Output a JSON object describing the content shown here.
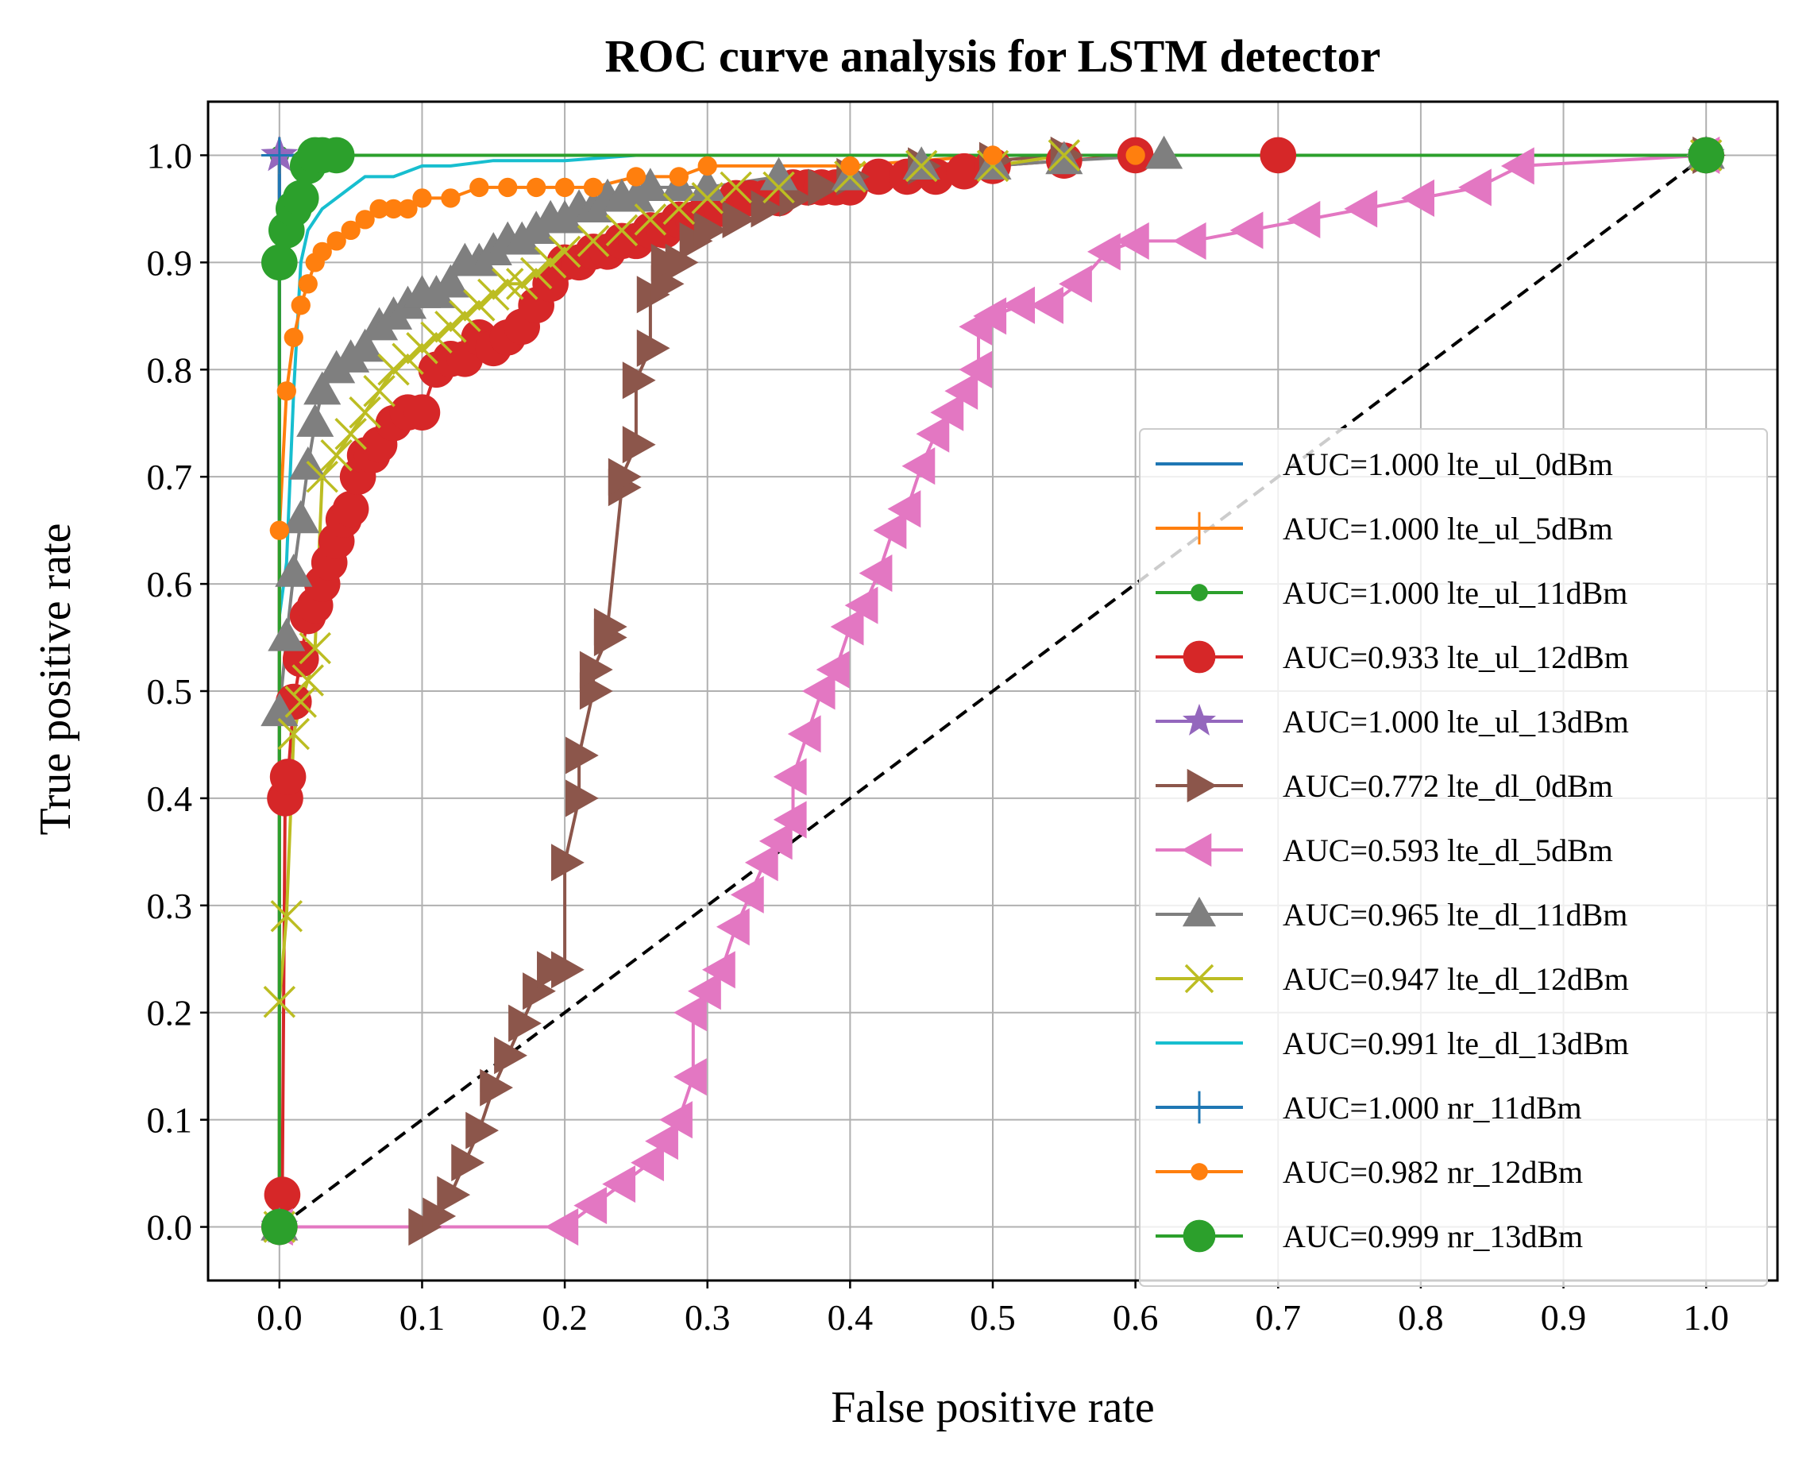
{
  "chart_data": {
    "type": "line",
    "title": "ROC curve analysis for LSTM detector",
    "xlabel": "False positive rate",
    "ylabel": "True positive rate",
    "xlim": [
      -0.05,
      1.05
    ],
    "ylim": [
      -0.05,
      1.05
    ],
    "xticks": [
      0.0,
      0.1,
      0.2,
      0.3,
      0.4,
      0.5,
      0.6,
      0.7,
      0.8,
      0.9,
      1.0
    ],
    "yticks": [
      0.0,
      0.1,
      0.2,
      0.3,
      0.4,
      0.5,
      0.6,
      0.7,
      0.8,
      0.9,
      1.0
    ],
    "xtick_labels": [
      "0.0",
      "0.1",
      "0.2",
      "0.3",
      "0.4",
      "0.5",
      "0.6",
      "0.7",
      "0.8",
      "0.9",
      "1.0"
    ],
    "ytick_labels": [
      "0.0",
      "0.1",
      "0.2",
      "0.3",
      "0.4",
      "0.5",
      "0.6",
      "0.7",
      "0.8",
      "0.9",
      "1.0"
    ],
    "grid": true,
    "legend_position": "center-right",
    "reference_line": {
      "x": [
        0,
        1
      ],
      "y": [
        0,
        1
      ],
      "color": "#000000",
      "style": "dashed"
    },
    "series": [
      {
        "name": "AUC=1.000 lte_ul_0dBm",
        "color": "#1f77b4",
        "marker": "none",
        "x": [
          0,
          0,
          1
        ],
        "y": [
          0,
          1,
          1
        ]
      },
      {
        "name": "AUC=1.000 lte_ul_5dBm",
        "color": "#ff7f0e",
        "marker": "plus",
        "x": [
          0,
          0,
          1
        ],
        "y": [
          0,
          1,
          1
        ]
      },
      {
        "name": "AUC=1.000 lte_ul_11dBm",
        "color": "#2ca02c",
        "marker": "point",
        "x": [
          0,
          0,
          1
        ],
        "y": [
          0,
          1,
          1
        ]
      },
      {
        "name": "AUC=0.933 lte_ul_12dBm",
        "color": "#d62728",
        "marker": "circle",
        "x": [
          0,
          0.002,
          0.004,
          0.006,
          0.01,
          0.015,
          0.02,
          0.025,
          0.03,
          0.035,
          0.04,
          0.045,
          0.05,
          0.055,
          0.06,
          0.065,
          0.07,
          0.08,
          0.09,
          0.1,
          0.11,
          0.12,
          0.13,
          0.14,
          0.15,
          0.16,
          0.17,
          0.18,
          0.19,
          0.2,
          0.21,
          0.22,
          0.23,
          0.24,
          0.25,
          0.26,
          0.27,
          0.28,
          0.29,
          0.3,
          0.31,
          0.32,
          0.33,
          0.34,
          0.35,
          0.36,
          0.37,
          0.38,
          0.39,
          0.4,
          0.42,
          0.44,
          0.46,
          0.48,
          0.5,
          0.55,
          0.6,
          0.7,
          1.0
        ],
        "y": [
          0,
          0.03,
          0.4,
          0.42,
          0.49,
          0.53,
          0.57,
          0.58,
          0.6,
          0.62,
          0.64,
          0.66,
          0.67,
          0.7,
          0.72,
          0.72,
          0.73,
          0.75,
          0.76,
          0.76,
          0.8,
          0.81,
          0.81,
          0.83,
          0.82,
          0.83,
          0.84,
          0.86,
          0.88,
          0.9,
          0.9,
          0.91,
          0.91,
          0.92,
          0.92,
          0.93,
          0.93,
          0.94,
          0.94,
          0.95,
          0.95,
          0.96,
          0.96,
          0.96,
          0.96,
          0.97,
          0.97,
          0.97,
          0.97,
          0.97,
          0.98,
          0.98,
          0.98,
          0.985,
          0.99,
          0.995,
          1.0,
          1.0,
          1.0
        ]
      },
      {
        "name": "AUC=1.000 lte_ul_13dBm",
        "color": "#9467bd",
        "marker": "star",
        "x": [
          0,
          0,
          1
        ],
        "y": [
          0,
          1,
          1
        ]
      },
      {
        "name": "AUC=0.772 lte_dl_0dBm",
        "color": "#8c564b",
        "marker": "triangle-right",
        "x": [
          0.1,
          0.11,
          0.12,
          0.13,
          0.14,
          0.15,
          0.16,
          0.17,
          0.18,
          0.19,
          0.2,
          0.2,
          0.21,
          0.21,
          0.22,
          0.22,
          0.23,
          0.23,
          0.24,
          0.24,
          0.25,
          0.25,
          0.26,
          0.26,
          0.27,
          0.27,
          0.28,
          0.29,
          0.3,
          0.32,
          0.34,
          0.36,
          0.38,
          0.4,
          0.45,
          0.5,
          0.55,
          1.0
        ],
        "y": [
          0,
          0.01,
          0.03,
          0.06,
          0.09,
          0.13,
          0.16,
          0.19,
          0.22,
          0.24,
          0.24,
          0.34,
          0.4,
          0.44,
          0.5,
          0.52,
          0.55,
          0.56,
          0.69,
          0.7,
          0.73,
          0.79,
          0.82,
          0.87,
          0.88,
          0.9,
          0.9,
          0.92,
          0.93,
          0.94,
          0.95,
          0.96,
          0.97,
          0.98,
          0.99,
          0.995,
          1.0,
          1.0
        ]
      },
      {
        "name": "AUC=0.593 lte_dl_5dBm",
        "color": "#e377c2",
        "marker": "triangle-left",
        "x": [
          0,
          0.2,
          0.22,
          0.24,
          0.26,
          0.27,
          0.28,
          0.29,
          0.29,
          0.3,
          0.31,
          0.32,
          0.33,
          0.34,
          0.35,
          0.36,
          0.36,
          0.37,
          0.38,
          0.39,
          0.4,
          0.41,
          0.42,
          0.43,
          0.44,
          0.45,
          0.46,
          0.47,
          0.48,
          0.49,
          0.49,
          0.5,
          0.52,
          0.54,
          0.56,
          0.58,
          0.6,
          0.64,
          0.68,
          0.72,
          0.76,
          0.8,
          0.84,
          0.87,
          1.0
        ],
        "y": [
          0,
          0,
          0.02,
          0.04,
          0.06,
          0.08,
          0.1,
          0.14,
          0.2,
          0.22,
          0.24,
          0.28,
          0.31,
          0.34,
          0.36,
          0.38,
          0.42,
          0.46,
          0.5,
          0.52,
          0.56,
          0.58,
          0.61,
          0.65,
          0.67,
          0.71,
          0.74,
          0.76,
          0.78,
          0.8,
          0.84,
          0.85,
          0.86,
          0.86,
          0.88,
          0.91,
          0.92,
          0.92,
          0.93,
          0.94,
          0.95,
          0.96,
          0.97,
          0.99,
          1.0
        ]
      },
      {
        "name": "AUC=0.965 lte_dl_11dBm",
        "color": "#7f7f7f",
        "marker": "triangle-up",
        "x": [
          0,
          0,
          0.005,
          0.01,
          0.015,
          0.02,
          0.025,
          0.03,
          0.04,
          0.05,
          0.06,
          0.07,
          0.08,
          0.09,
          0.1,
          0.11,
          0.12,
          0.13,
          0.14,
          0.15,
          0.16,
          0.17,
          0.18,
          0.19,
          0.2,
          0.21,
          0.22,
          0.23,
          0.24,
          0.25,
          0.26,
          0.28,
          0.3,
          0.35,
          0.4,
          0.45,
          0.5,
          0.55,
          0.62,
          1.0
        ],
        "y": [
          0,
          0.48,
          0.55,
          0.61,
          0.66,
          0.71,
          0.75,
          0.78,
          0.8,
          0.81,
          0.82,
          0.84,
          0.85,
          0.86,
          0.87,
          0.87,
          0.88,
          0.9,
          0.9,
          0.91,
          0.92,
          0.92,
          0.93,
          0.94,
          0.94,
          0.95,
          0.95,
          0.96,
          0.96,
          0.96,
          0.97,
          0.97,
          0.97,
          0.98,
          0.98,
          0.99,
          0.99,
          0.995,
          1.0,
          1.0
        ]
      },
      {
        "name": "AUC=0.947 lte_dl_12dBm",
        "color": "#bcbd22",
        "marker": "x",
        "x": [
          0,
          0,
          0.005,
          0.01,
          0.015,
          0.02,
          0.025,
          0.03,
          0.04,
          0.05,
          0.06,
          0.07,
          0.08,
          0.09,
          0.1,
          0.11,
          0.12,
          0.13,
          0.14,
          0.15,
          0.16,
          0.17,
          0.18,
          0.19,
          0.2,
          0.22,
          0.24,
          0.26,
          0.28,
          0.3,
          0.32,
          0.35,
          0.4,
          0.45,
          0.5,
          0.55,
          1.0
        ],
        "y": [
          0,
          0.21,
          0.29,
          0.46,
          0.49,
          0.51,
          0.54,
          0.7,
          0.72,
          0.74,
          0.76,
          0.78,
          0.8,
          0.81,
          0.82,
          0.83,
          0.84,
          0.85,
          0.86,
          0.87,
          0.88,
          0.88,
          0.89,
          0.9,
          0.91,
          0.92,
          0.93,
          0.94,
          0.95,
          0.96,
          0.97,
          0.97,
          0.98,
          0.99,
          0.99,
          1.0,
          1.0
        ]
      },
      {
        "name": "AUC=0.991 lte_dl_13dBm",
        "color": "#17becf",
        "marker": "none",
        "x": [
          0,
          0,
          0.005,
          0.01,
          0.015,
          0.02,
          0.025,
          0.03,
          0.04,
          0.05,
          0.06,
          0.08,
          0.1,
          0.12,
          0.15,
          0.2,
          0.25,
          0.3,
          1.0
        ],
        "y": [
          0,
          0.57,
          0.62,
          0.78,
          0.9,
          0.93,
          0.94,
          0.95,
          0.96,
          0.97,
          0.98,
          0.98,
          0.99,
          0.99,
          0.995,
          0.995,
          1.0,
          1.0,
          1.0
        ]
      },
      {
        "name": "AUC=1.000 nr_11dBm",
        "color": "#1f77b4",
        "marker": "plus",
        "x": [
          0,
          0,
          1
        ],
        "y": [
          0,
          1,
          1
        ]
      },
      {
        "name": "AUC=0.982 nr_12dBm",
        "color": "#ff7f0e",
        "marker": "point",
        "x": [
          0,
          0,
          0.005,
          0.01,
          0.015,
          0.02,
          0.025,
          0.03,
          0.04,
          0.05,
          0.06,
          0.07,
          0.08,
          0.09,
          0.1,
          0.12,
          0.14,
          0.16,
          0.18,
          0.2,
          0.22,
          0.25,
          0.28,
          0.3,
          0.4,
          0.5,
          0.6,
          1.0
        ],
        "y": [
          0,
          0.65,
          0.78,
          0.83,
          0.86,
          0.88,
          0.9,
          0.91,
          0.92,
          0.93,
          0.94,
          0.95,
          0.95,
          0.95,
          0.96,
          0.96,
          0.97,
          0.97,
          0.97,
          0.97,
          0.97,
          0.98,
          0.98,
          0.99,
          0.99,
          1.0,
          1.0,
          1.0
        ]
      },
      {
        "name": "AUC=0.999 nr_13dBm",
        "color": "#2ca02c",
        "marker": "circle",
        "x": [
          0,
          0,
          0.005,
          0.01,
          0.015,
          0.02,
          0.025,
          0.03,
          0.04,
          1.0
        ],
        "y": [
          0,
          0.9,
          0.93,
          0.95,
          0.96,
          0.99,
          1.0,
          1.0,
          1.0,
          1.0
        ]
      }
    ]
  }
}
